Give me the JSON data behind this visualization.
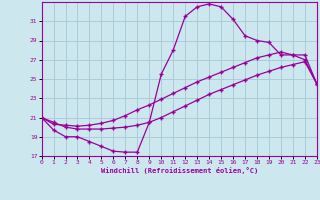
{
  "xlabel": "Windchill (Refroidissement éolien,°C)",
  "bg_color": "#cce8ee",
  "grid_color": "#aaccd8",
  "line_color": "#990099",
  "xmin": 0,
  "xmax": 23,
  "ymin": 17,
  "ymax": 33,
  "yticks": [
    17,
    19,
    21,
    23,
    25,
    27,
    29,
    31
  ],
  "xticks": [
    0,
    1,
    2,
    3,
    4,
    5,
    6,
    7,
    8,
    9,
    10,
    11,
    12,
    13,
    14,
    15,
    16,
    17,
    18,
    19,
    20,
    21,
    22,
    23
  ],
  "curve1_x": [
    0,
    1,
    2,
    3,
    4,
    5,
    6,
    7,
    8,
    9,
    10,
    11,
    12,
    13,
    14,
    15,
    16,
    17,
    18,
    19,
    20,
    21,
    22,
    23
  ],
  "curve1_y": [
    21.0,
    19.7,
    19.0,
    19.0,
    18.5,
    18.0,
    17.5,
    17.4,
    17.4,
    20.5,
    25.5,
    28.0,
    31.5,
    32.5,
    32.8,
    32.5,
    31.2,
    29.5,
    29.0,
    28.8,
    27.5,
    27.5,
    27.0,
    24.5
  ],
  "curve2_x": [
    0,
    1,
    2,
    3,
    4,
    5,
    6,
    7,
    8,
    9,
    10,
    11,
    12,
    13,
    14,
    15,
    16,
    17,
    18,
    19,
    20,
    21,
    22,
    23
  ],
  "curve2_y": [
    21.0,
    20.3,
    20.2,
    20.1,
    20.2,
    20.4,
    20.7,
    21.2,
    21.8,
    22.3,
    22.9,
    23.5,
    24.1,
    24.7,
    25.2,
    25.7,
    26.2,
    26.7,
    27.2,
    27.5,
    27.8,
    27.5,
    27.5,
    24.5
  ],
  "curve3_x": [
    0,
    1,
    2,
    3,
    4,
    5,
    6,
    7,
    8,
    9,
    10,
    11,
    12,
    13,
    14,
    15,
    16,
    17,
    18,
    19,
    20,
    21,
    22,
    23
  ],
  "curve3_y": [
    21.0,
    20.5,
    20.0,
    19.8,
    19.8,
    19.8,
    19.9,
    20.0,
    20.2,
    20.5,
    21.0,
    21.6,
    22.2,
    22.8,
    23.4,
    23.9,
    24.4,
    24.9,
    25.4,
    25.8,
    26.2,
    26.5,
    26.8,
    24.5
  ]
}
